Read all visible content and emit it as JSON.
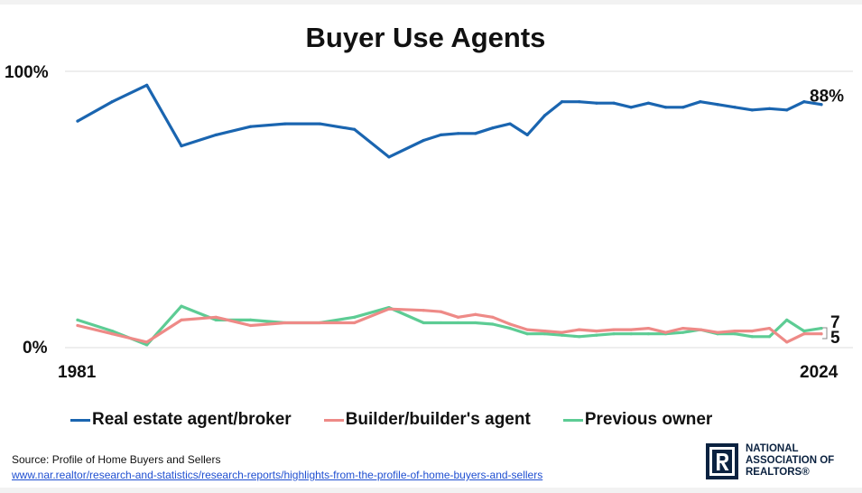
{
  "chart_data": {
    "type": "line",
    "title": "Buyer Use Agents",
    "x_start_label": "1981",
    "x_end_label": "2024",
    "y_top_label": "100%",
    "y_bottom_label": "0%",
    "ylim": [
      0,
      100
    ],
    "grid": true,
    "legend_position": "bottom",
    "end_labels": {
      "agent": "88%",
      "previous_owner": "7",
      "builder": "5"
    },
    "x": [
      1981,
      1983,
      1985,
      1987,
      1989,
      1991,
      1993,
      1995,
      1997,
      1999,
      2001,
      2002,
      2003,
      2004,
      2005,
      2006,
      2007,
      2008,
      2009,
      2010,
      2011,
      2012,
      2013,
      2014,
      2015,
      2016,
      2017,
      2018,
      2019,
      2020,
      2021,
      2022,
      2023,
      2024
    ],
    "series": [
      {
        "name": "Real estate agent/broker",
        "color": "#1a65b0",
        "values": [
          82,
          89,
          95,
          73,
          77,
          80,
          81,
          81,
          79,
          69,
          75,
          77,
          77.5,
          77.5,
          79.5,
          81,
          77,
          84,
          89,
          89,
          88.5,
          88.5,
          87,
          88.5,
          87,
          87,
          89,
          88,
          87,
          86,
          86.5,
          86,
          89,
          88
        ]
      },
      {
        "name": "Builder/builder's agent",
        "color": "#ee8a87",
        "values": [
          8,
          5,
          2,
          10,
          11,
          8,
          9,
          9,
          9,
          14,
          13.5,
          13,
          11,
          12,
          11,
          8.5,
          6.5,
          6,
          5.5,
          6.5,
          6,
          6.5,
          6.5,
          7,
          5.5,
          7,
          6.5,
          5.5,
          6,
          6,
          7,
          2,
          5,
          5
        ]
      },
      {
        "name": "Previous owner",
        "color": "#5dcc94",
        "values": [
          10,
          6,
          1,
          15,
          10,
          10,
          9,
          9,
          11,
          14.5,
          9,
          9,
          9,
          9,
          8.5,
          7,
          5,
          5,
          4.5,
          4,
          4.5,
          5,
          5,
          5,
          5,
          5.5,
          6.5,
          5,
          5,
          4,
          4,
          10,
          6,
          7
        ]
      }
    ]
  },
  "source": {
    "text": "Source: Profile of Home Buyers and Sellers",
    "link": "www.nar.realtor/research-and-statistics/research-reports/highlights-from-the-profile-of-home-buyers-and-sellers"
  },
  "logo": {
    "line1": "NATIONAL",
    "line2": "ASSOCIATION OF",
    "line3": "REALTORS®",
    "color": "#0b2240"
  }
}
